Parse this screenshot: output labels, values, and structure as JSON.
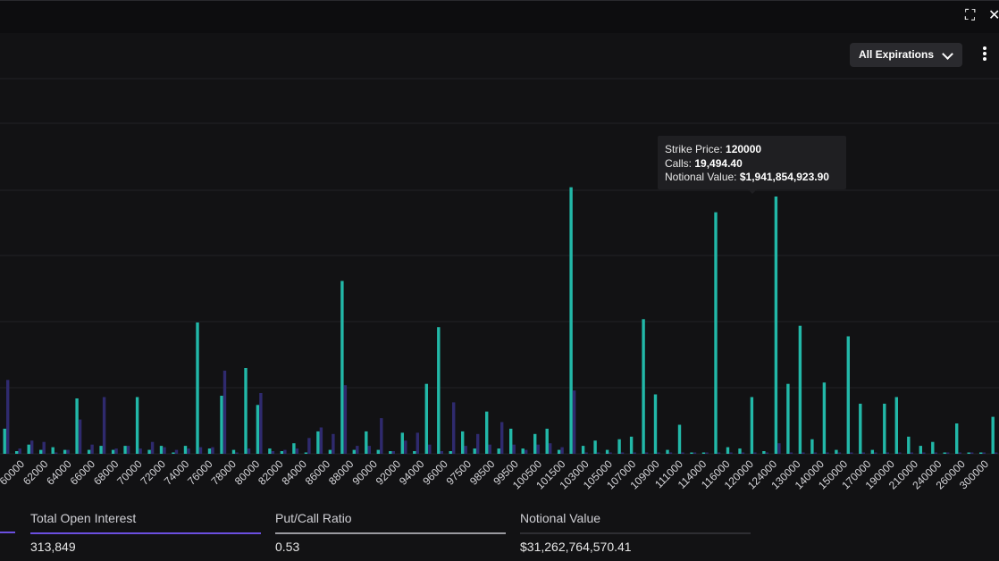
{
  "header": {
    "expiration_label": "All Expirations",
    "expand_icon": "expand-icon",
    "close_icon": "close-icon",
    "menu_icon": "kebab-menu-icon"
  },
  "tooltip": {
    "strike_label": "Strike Price:",
    "strike_value": "120000",
    "calls_label": "Calls:",
    "calls_value": "19,494.40",
    "notional_label": "Notional Value:",
    "notional_value": "$1,941,854,923.90"
  },
  "stats": [
    {
      "label": "Total Open Interest",
      "value": "313,849",
      "color": "#6b4fe0"
    },
    {
      "label": "Put/Call Ratio",
      "value": "0.53",
      "color": "#9a9aa0"
    },
    {
      "label": "Notional Value",
      "value": "$31,262,764,570.41",
      "color": "#2e2e33"
    }
  ],
  "colors": {
    "calls": "#22b8a8",
    "puts": "#2f2a6e",
    "grid": "#232326"
  },
  "chart_data": {
    "type": "bar",
    "tick_labels": [
      "60000",
      "62000",
      "64000",
      "66000",
      "68000",
      "70000",
      "72000",
      "74000",
      "76000",
      "78000",
      "80000",
      "82000",
      "84000",
      "86000",
      "88000",
      "90000",
      "92000",
      "94000",
      "96000",
      "97500",
      "98500",
      "99500",
      "100500",
      "101500",
      "103000",
      "105000",
      "107000",
      "109000",
      "111000",
      "114000",
      "116000",
      "120000",
      "124000",
      "130000",
      "140000",
      "150000",
      "170000",
      "190000",
      "210000",
      "240000",
      "260000",
      "300000"
    ],
    "series": [
      {
        "name": "Calls",
        "values": [
          1900,
          200,
          700,
          300,
          500,
          300,
          4200,
          300,
          600,
          300,
          600,
          4300,
          300,
          600,
          100,
          600,
          9950,
          400,
          4400,
          300,
          6500,
          3700,
          400,
          200,
          800,
          100,
          1700,
          300,
          13100,
          300,
          1700,
          300,
          200,
          1600,
          200,
          5300,
          9600,
          200,
          1700,
          400,
          3200,
          400,
          1900,
          400,
          1500,
          1900,
          300,
          20200,
          600,
          1000,
          300,
          1100,
          1300,
          10200,
          4500,
          300,
          2200,
          100,
          100,
          18300,
          500,
          400,
          4300,
          200,
          19494.4,
          5300,
          9700,
          1100,
          5400,
          300,
          8900,
          3800,
          300,
          3800,
          4300,
          1300,
          600,
          900,
          100,
          2300,
          100,
          100,
          2800
        ]
      },
      {
        "name": "Puts",
        "values": [
          5600,
          400,
          1000,
          900,
          100,
          300,
          2600,
          700,
          4300,
          400,
          600,
          400,
          900,
          500,
          300,
          400,
          500,
          500,
          6300,
          100,
          400,
          4600,
          200,
          300,
          400,
          1200,
          2000,
          1500,
          5200,
          600,
          600,
          2700,
          200,
          1000,
          1600,
          700,
          200,
          3900,
          600,
          1500,
          700,
          2400,
          700,
          300,
          700,
          800,
          500,
          4800,
          100,
          100,
          100,
          100,
          100,
          100,
          100,
          100,
          100,
          100,
          100,
          100,
          100,
          100,
          100,
          100,
          800,
          100,
          100,
          100,
          100,
          100,
          100,
          100,
          100,
          100,
          100,
          100,
          100,
          100,
          100,
          100,
          100,
          100,
          100
        ]
      }
    ]
  }
}
